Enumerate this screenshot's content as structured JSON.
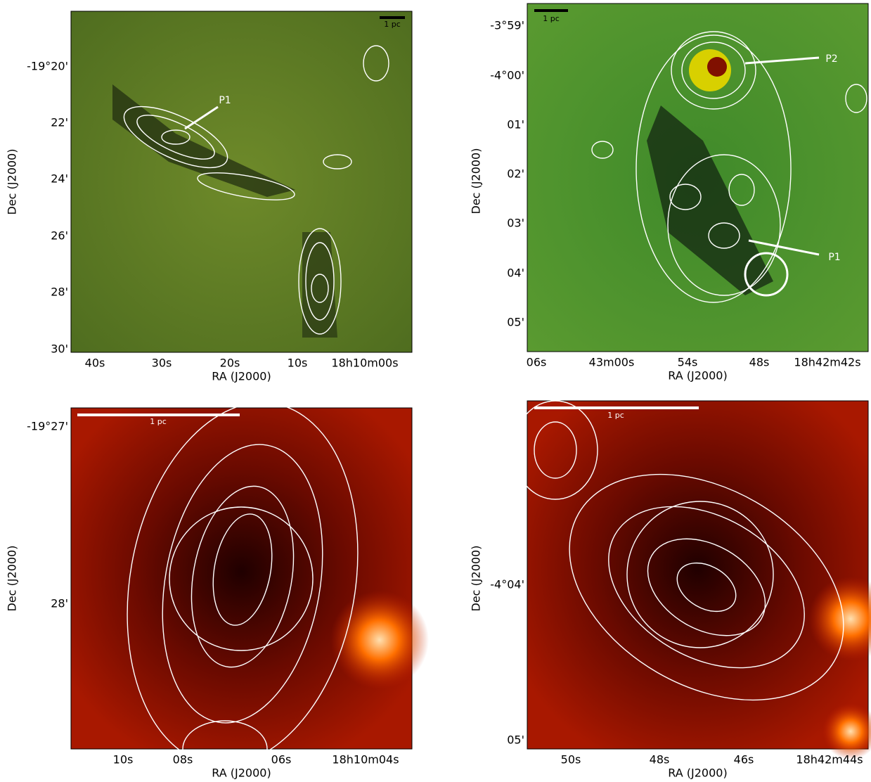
{
  "panels": [
    {
      "x_label": "RA (J2000)",
      "y_label": "Dec (J2000)",
      "x_ticks": [
        "40s",
        "30s",
        "20s",
        "10s",
        "18h10m00s"
      ],
      "y_ticks": [
        "-19°20'",
        "22'",
        "24'",
        "26'",
        "28'",
        "30'"
      ],
      "scale_bar": "1 pc",
      "annotations": [
        "P1"
      ]
    },
    {
      "x_label": "RA (J2000)",
      "y_label": "Dec (J2000)",
      "x_ticks": [
        "06s",
        "43m00s",
        "54s",
        "48s",
        "18h42m42s"
      ],
      "y_ticks": [
        "-3°59'",
        "-4°00'",
        "01'",
        "02'",
        "03'",
        "04'",
        "05'"
      ],
      "scale_bar": "1 pc",
      "annotations": [
        "P2",
        "P1"
      ]
    },
    {
      "x_label": "RA (J2000)",
      "y_label": "Dec (J2000)",
      "x_ticks": [
        "10s",
        "08s",
        "06s",
        "18h10m04s"
      ],
      "y_ticks": [
        "-19°27'",
        "28'"
      ],
      "scale_bar": "1 pc",
      "annotations": []
    },
    {
      "x_label": "RA (J2000)",
      "y_label": "Dec (J2000)",
      "x_ticks": [
        "50s",
        "48s",
        "46s",
        "18h42m44s"
      ],
      "y_ticks": [
        "-4°04'",
        "05'"
      ],
      "scale_bar": "1 pc",
      "annotations": []
    }
  ]
}
